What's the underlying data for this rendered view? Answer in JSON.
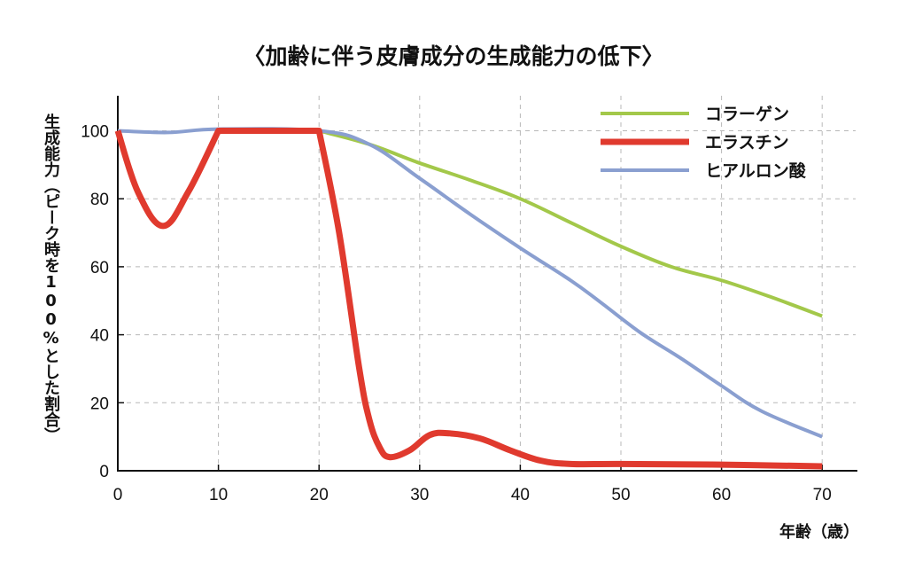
{
  "title": "〈加齢に伴う皮膚成分の生成能力の低下〉",
  "ylabel": "生成能力（ピーク時を100%とした割合）",
  "xlabel": "年齢（歳）",
  "legend": [
    {
      "label": "コラーゲン",
      "color": "#a3c84a"
    },
    {
      "label": "エラスチン",
      "color": "#e03a2e"
    },
    {
      "label": "ヒアルロン酸",
      "color": "#8a9fd0"
    }
  ],
  "chart_data": {
    "type": "line",
    "title": "〈加齢に伴う皮膚成分の生成能力の低下〉",
    "xlabel": "年齢（歳）",
    "ylabel": "生成能力（ピーク時を100%とした割合）",
    "xlim": [
      0,
      73
    ],
    "ylim": [
      0,
      110
    ],
    "xticks": [
      0,
      10,
      20,
      30,
      40,
      50,
      60,
      70
    ],
    "yticks": [
      0,
      20,
      40,
      60,
      80,
      100
    ],
    "grid": true,
    "legend_position": "upper right",
    "series": [
      {
        "name": "コラーゲン",
        "color": "#a3c84a",
        "x": [
          20,
          25,
          30,
          35,
          40,
          45,
          50,
          55,
          60,
          65,
          70
        ],
        "y": [
          100,
          96,
          90.5,
          85.5,
          80,
          73,
          66,
          60,
          56,
          51,
          45.5
        ]
      },
      {
        "name": "エラスチン",
        "color": "#e03a2e",
        "x": [
          0,
          2,
          4.5,
          7,
          10,
          20,
          22,
          24,
          25,
          26,
          27,
          29,
          31,
          33,
          36,
          39,
          42,
          45,
          50,
          60,
          70
        ],
        "y": [
          100,
          82,
          72,
          82,
          100,
          100,
          70,
          30,
          15,
          7,
          4,
          6,
          10.5,
          11,
          9.5,
          6,
          3,
          2,
          2,
          1.8,
          1.3
        ]
      },
      {
        "name": "ヒアルロン酸",
        "color": "#8a9fd0",
        "x": [
          0,
          5,
          10,
          20,
          25,
          30,
          35,
          40,
          45,
          48,
          52,
          56,
          60,
          64,
          70
        ],
        "y": [
          100,
          99.5,
          100.5,
          100,
          96,
          86,
          75.5,
          65.5,
          56,
          49.5,
          40.5,
          33,
          25,
          17.5,
          10
        ]
      }
    ]
  }
}
